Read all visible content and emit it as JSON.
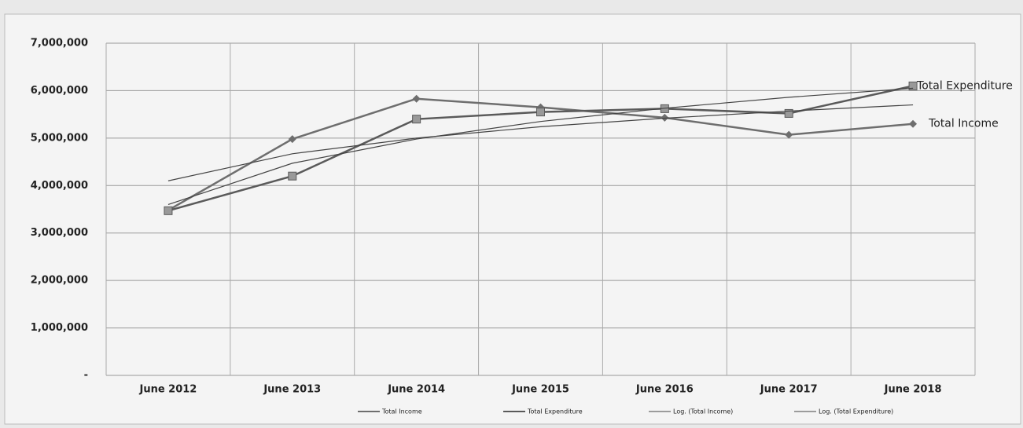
{
  "chart_data": {
    "type": "line",
    "categories": [
      "June 2012",
      "June 2013",
      "June 2014",
      "June 2015",
      "June 2016",
      "June 2017",
      "June 2018"
    ],
    "series": [
      {
        "name": "Total Income",
        "color": "#6e6e6e",
        "marker": "diamond",
        "values": [
          3480000,
          4980000,
          5830000,
          5650000,
          5430000,
          5070000,
          5300000
        ]
      },
      {
        "name": "Total Expenditure",
        "color": "#5a5a5a",
        "marker": "square",
        "values": [
          3470000,
          4200000,
          5400000,
          5550000,
          5620000,
          5520000,
          6100000
        ]
      },
      {
        "name": "Log. (Total Income)",
        "color": "#444444",
        "marker": null,
        "values": [
          4100000,
          4670000,
          5000000,
          5240000,
          5420000,
          5570000,
          5700000
        ]
      },
      {
        "name": "Log. (Total Expenditure)",
        "color": "#444444",
        "marker": null,
        "values": [
          3600000,
          4470000,
          4980000,
          5350000,
          5630000,
          5860000,
          6050000
        ]
      }
    ],
    "annotations": [
      {
        "text": "Total Expenditure",
        "series": 1
      },
      {
        "text": "Total Income",
        "series": 0
      }
    ],
    "ylim": [
      0,
      7000000
    ],
    "yticks": [
      {
        "value": 0,
        "label": "-"
      },
      {
        "value": 1000000,
        "label": "1,000,000"
      },
      {
        "value": 2000000,
        "label": "2,000,000"
      },
      {
        "value": 3000000,
        "label": "3,000,000"
      },
      {
        "value": 4000000,
        "label": "4,000,000"
      },
      {
        "value": 5000000,
        "label": "5,000,000"
      },
      {
        "value": 6000000,
        "label": "6,000,000"
      },
      {
        "value": 7000000,
        "label": "7,000,000"
      }
    ],
    "grid": true,
    "legend": "bottom"
  }
}
